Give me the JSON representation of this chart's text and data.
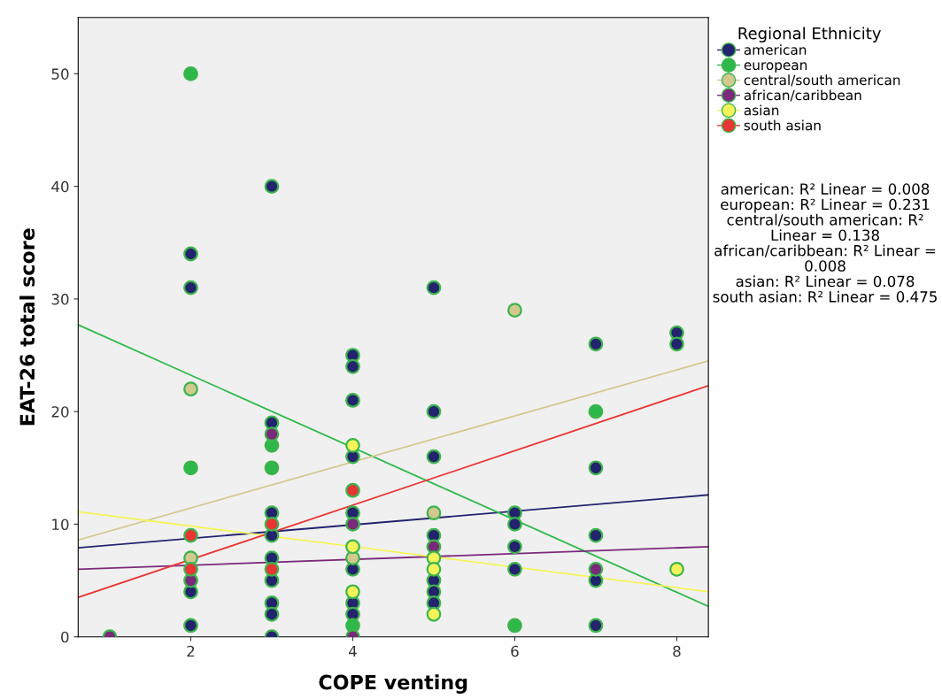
{
  "chart_data": {
    "type": "scatter",
    "xlabel": "COPE venting",
    "ylabel": "EAT-26 total score",
    "xlim": [
      0.61,
      8.39
    ],
    "ylim": [
      0,
      55
    ],
    "xticks": [
      2,
      4,
      6,
      8
    ],
    "yticks": [
      0,
      10,
      20,
      30,
      40,
      50
    ],
    "grid": false,
    "legend": "right",
    "legend_title": "Regional Ethnicity",
    "marker": "circle",
    "series": [
      {
        "name": "american",
        "color": "#23236e",
        "x": [
          2,
          2,
          2,
          2,
          3,
          3,
          3,
          3,
          3,
          3,
          3,
          3,
          3,
          4,
          4,
          4,
          4,
          4,
          4,
          4,
          4,
          5,
          5,
          5,
          5,
          5,
          5,
          5,
          6,
          6,
          6,
          6,
          7,
          7,
          7,
          7,
          7,
          8,
          8
        ],
        "values": [
          34,
          31,
          4,
          1,
          40,
          19,
          11,
          9,
          7,
          5,
          3,
          2,
          0,
          25,
          24,
          21,
          16,
          11,
          6,
          3,
          2,
          31,
          20,
          16,
          9,
          5,
          4,
          3,
          11,
          10,
          8,
          6,
          26,
          15,
          9,
          5,
          1,
          27,
          26
        ]
      },
      {
        "name": "european",
        "color": "#2fb84a",
        "x": [
          2,
          2,
          3,
          3,
          4,
          6,
          7
        ],
        "values": [
          50,
          15,
          17,
          15,
          1,
          1,
          20
        ]
      },
      {
        "name": "central/south american",
        "color": "#d2c890",
        "x": [
          2,
          2,
          4,
          5,
          6
        ],
        "values": [
          22,
          7,
          7,
          11,
          29
        ]
      },
      {
        "name": "african/caribbean",
        "color": "#7a2a7a",
        "x": [
          1,
          2,
          3,
          4,
          4,
          5,
          7
        ],
        "values": [
          0,
          5,
          18,
          10,
          0,
          8,
          6
        ]
      },
      {
        "name": "asian",
        "color": "#f4f45a",
        "x": [
          4,
          4,
          4,
          5,
          5,
          5,
          8
        ],
        "values": [
          17,
          8,
          4,
          7,
          6,
          2,
          6
        ]
      },
      {
        "name": "south asian",
        "color": "#ea3535",
        "x": [
          2,
          2,
          3,
          3,
          4
        ],
        "values": [
          9,
          6,
          10,
          6,
          13
        ]
      },
      {
        "type": "line",
        "marker": "none",
        "color": "#23236e",
        "x": [
          0.61,
          8.39
        ],
        "values": [
          7.9,
          12.6
        ]
      },
      {
        "type": "line",
        "marker": "none",
        "color": "#2fb84a",
        "x": [
          0.61,
          8.39
        ],
        "values": [
          27.7,
          2.7
        ]
      },
      {
        "type": "line",
        "marker": "none",
        "color": "#d2c890",
        "x": [
          0.61,
          8.39
        ],
        "values": [
          8.6,
          24.5
        ]
      },
      {
        "type": "line",
        "marker": "none",
        "color": "#7a2a7a",
        "x": [
          0.61,
          8.39
        ],
        "values": [
          6.0,
          8.0
        ]
      },
      {
        "type": "line",
        "marker": "none",
        "color": "#f4f45a",
        "x": [
          0.61,
          8.39
        ],
        "values": [
          11.1,
          4.0
        ]
      },
      {
        "type": "line",
        "marker": "none",
        "color": "#ea3535",
        "x": [
          0.61,
          8.39
        ],
        "values": [
          3.5,
          22.3
        ]
      }
    ],
    "annotations": [
      "american: R² Linear = 0.008",
      "european: R² Linear = 0.231",
      "central/south american: R² Linear = 0.138",
      "african/caribbean: R² Linear = 0.008",
      "asian: R² Linear = 0.078",
      "south asian: R² Linear = 0.475"
    ]
  }
}
